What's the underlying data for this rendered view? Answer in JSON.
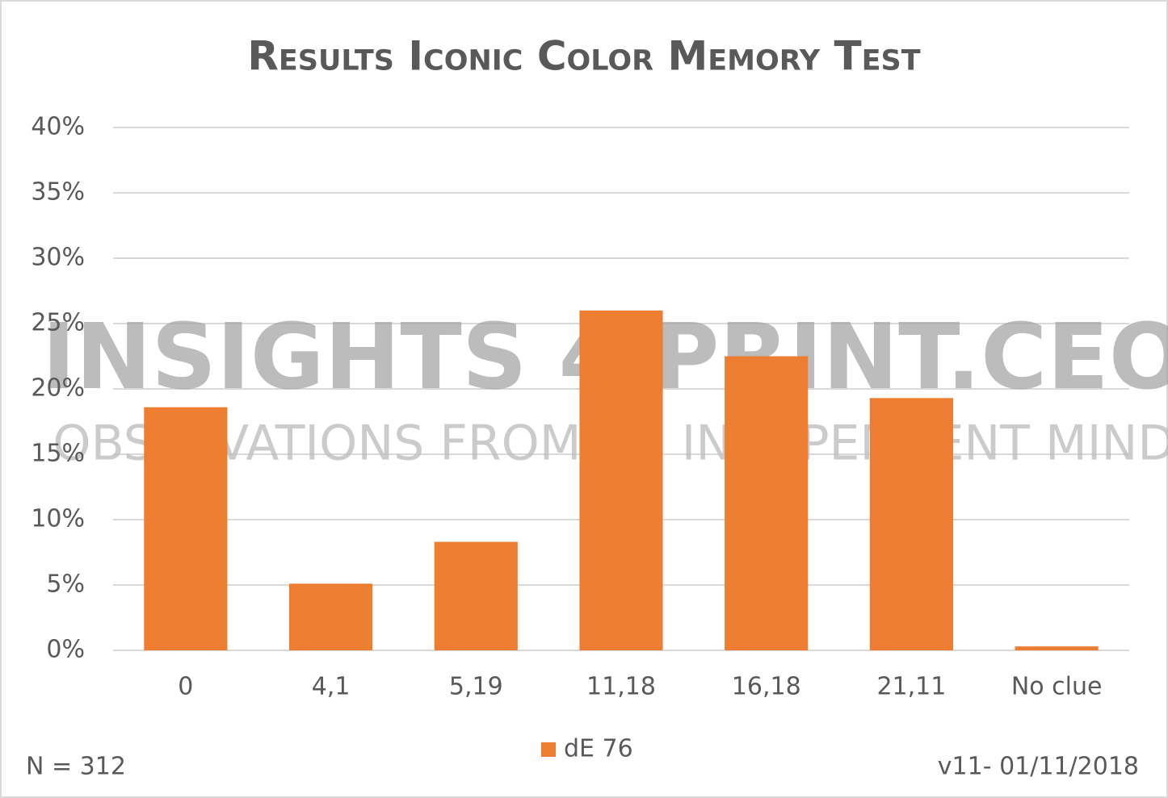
{
  "chart_data": {
    "type": "bar",
    "title": "Results Iconic Color Memory Test",
    "categories": [
      "0",
      "4,1",
      "5,19",
      "11,18",
      "16,18",
      "21,11",
      "No clue"
    ],
    "series": [
      {
        "name": "dE 76",
        "color": "#ed7d31",
        "values": [
          18.6,
          5.1,
          8.3,
          26.0,
          22.5,
          19.3,
          0.3
        ]
      }
    ],
    "ylim": [
      0,
      40
    ],
    "yticks": [
      {
        "value": 0,
        "label": "0%"
      },
      {
        "value": 5,
        "label": "5%"
      },
      {
        "value": 10,
        "label": "10%"
      },
      {
        "value": 15,
        "label": "15%"
      },
      {
        "value": 20,
        "label": "20%"
      },
      {
        "value": 25,
        "label": "25%"
      },
      {
        "value": 30,
        "label": "30%"
      },
      {
        "value": 35,
        "label": "35%"
      },
      {
        "value": 40,
        "label": "40%"
      }
    ],
    "grid": true,
    "legend": "bottom",
    "watermark": [
      "INSIGHTS 4 PRINT.CEO",
      "OBSERVATIONS FROM AN INDEPENDENT MIND"
    ],
    "footnotes": [
      "N = 312",
      "v11- 01/11/2018"
    ]
  }
}
